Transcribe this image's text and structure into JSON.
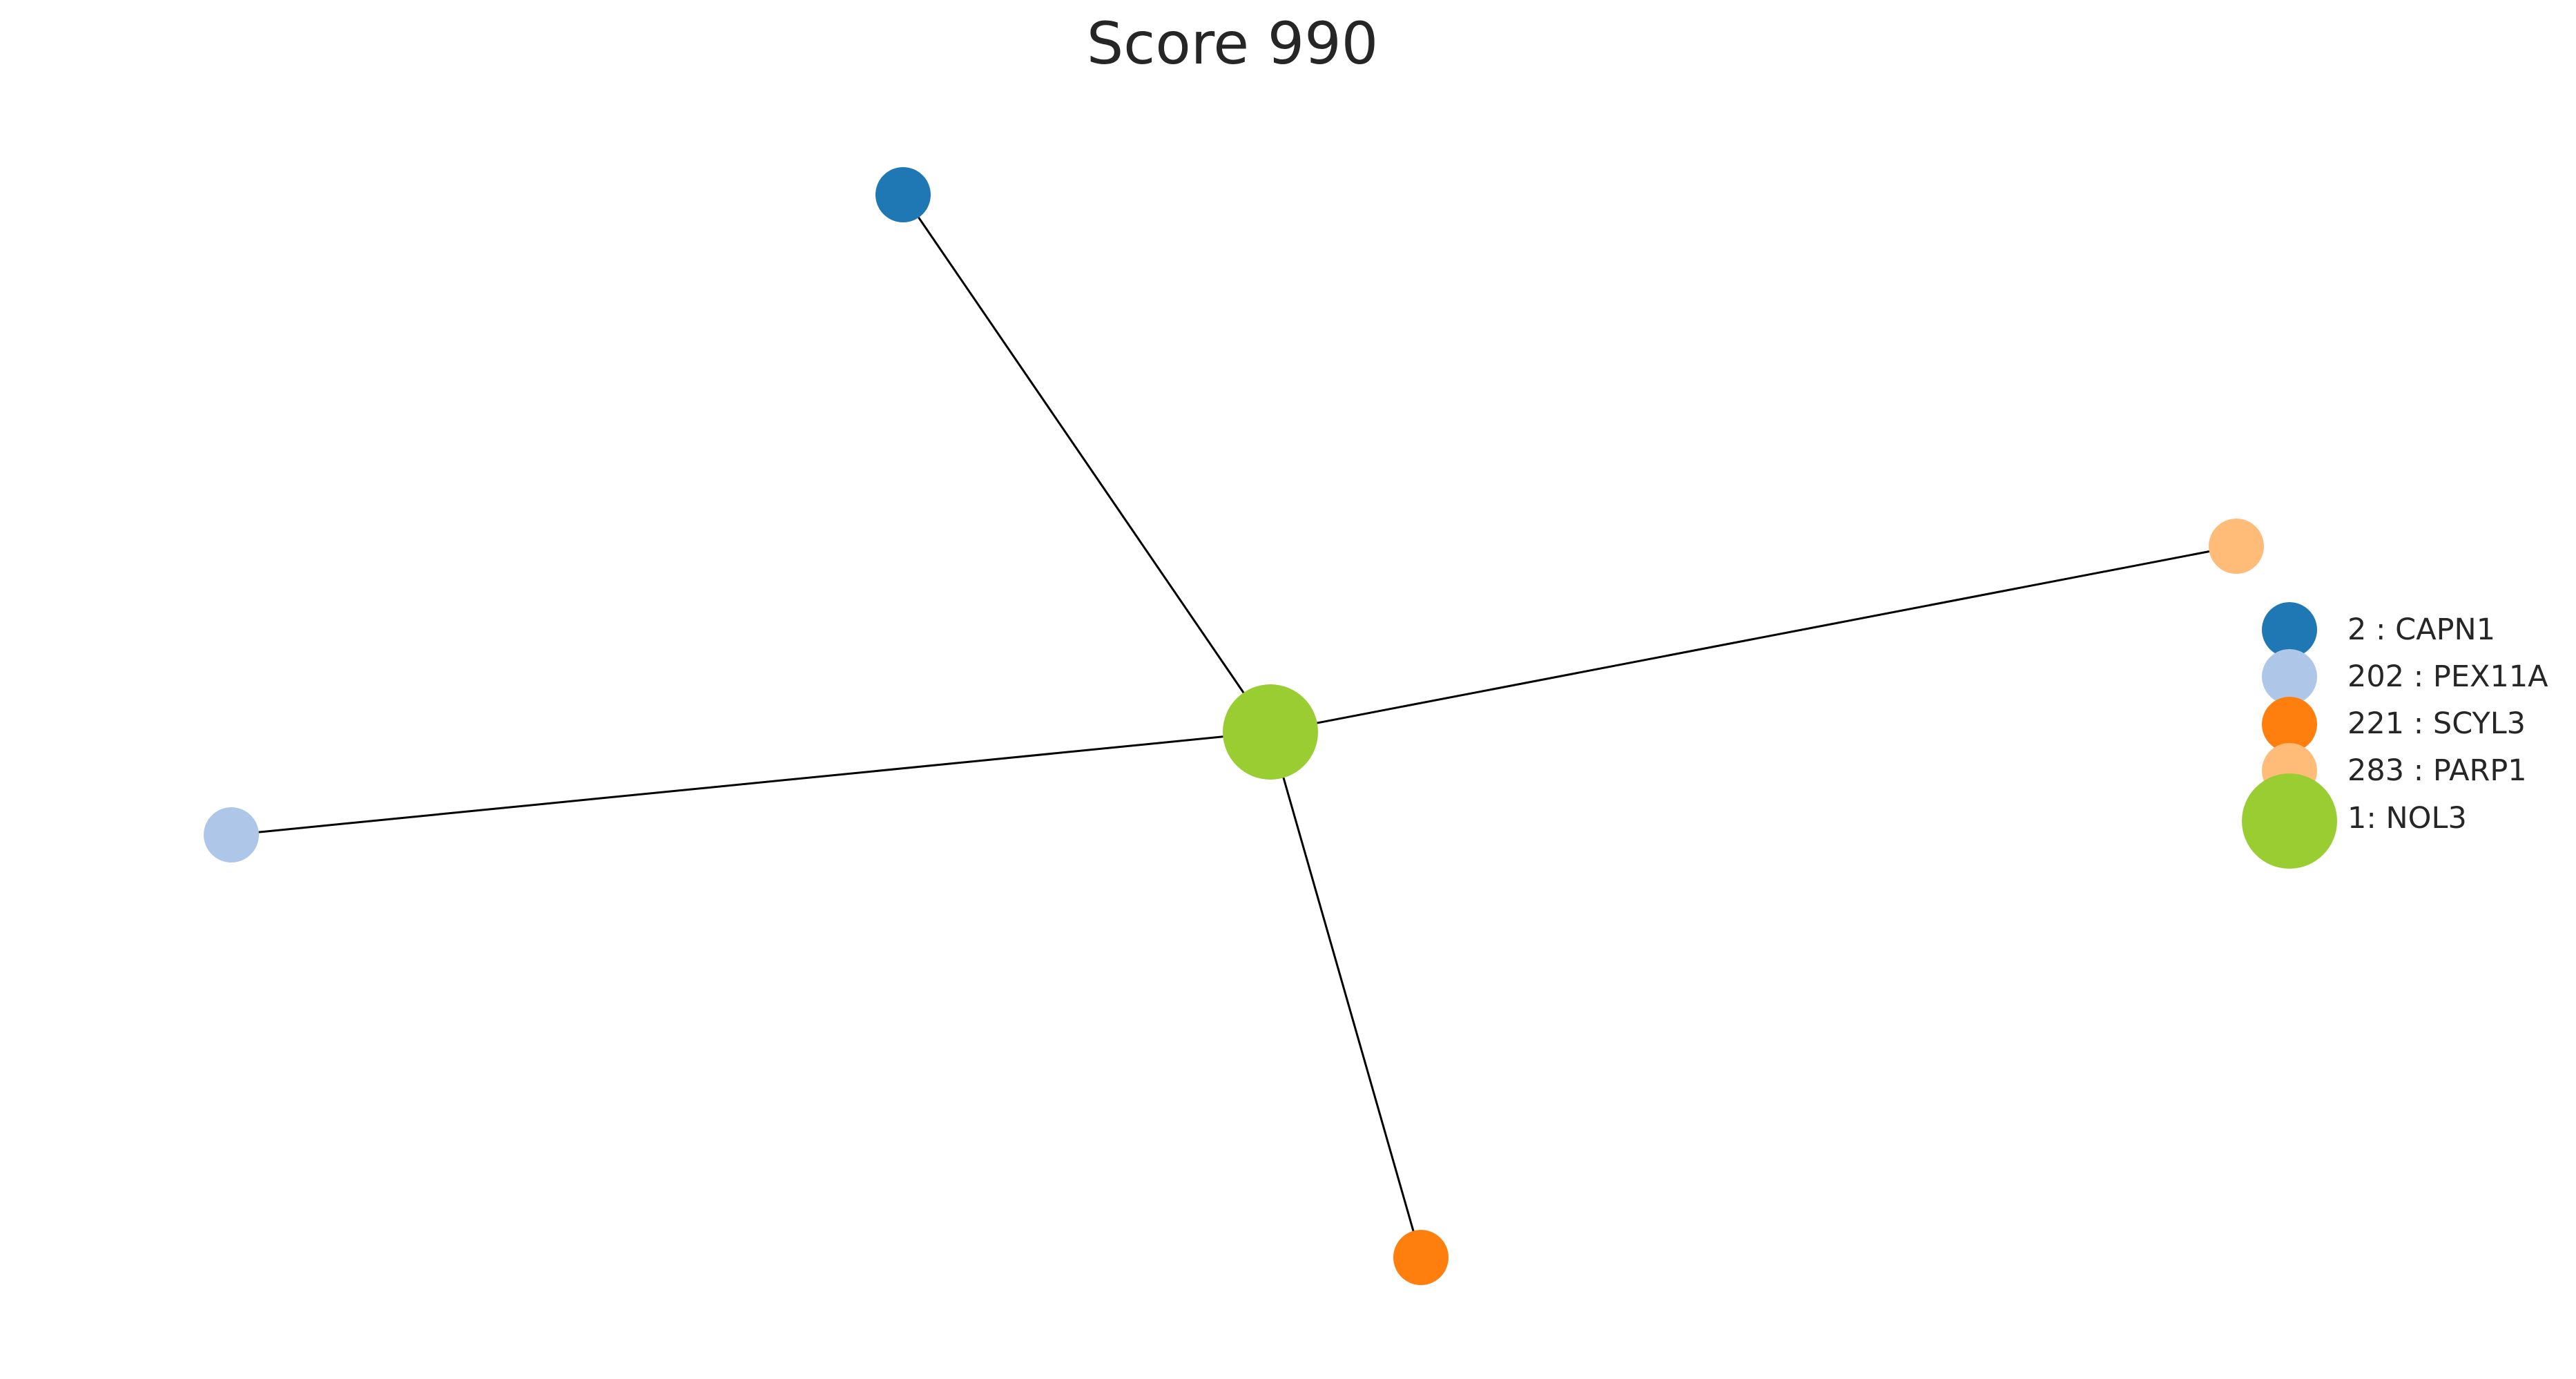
{
  "title": "Score 990",
  "nodes": [
    {
      "id": "CAPN1",
      "color": "#1f77b4"
    },
    {
      "id": "PEX11A",
      "color": "#aec7e8"
    },
    {
      "id": "SCYL3",
      "color": "#ff7f0e"
    },
    {
      "id": "PARP1",
      "color": "#ffbb78"
    },
    {
      "id": "NOL3",
      "color": "#9acd32"
    }
  ],
  "edges": [
    {
      "from": "NOL3",
      "to": "CAPN1"
    },
    {
      "from": "NOL3",
      "to": "PEX11A"
    },
    {
      "from": "NOL3",
      "to": "SCYL3"
    },
    {
      "from": "NOL3",
      "to": "PARP1"
    }
  ],
  "legend": [
    {
      "label": "2 : CAPN1",
      "color": "#1f77b4"
    },
    {
      "label": "202 : PEX11A",
      "color": "#aec7e8"
    },
    {
      "label": "221 : SCYL3",
      "color": "#ff7f0e"
    },
    {
      "label": "283 : PARP1",
      "color": "#ffbb78"
    },
    {
      "label": "1: NOL3",
      "color": "#9acd32"
    }
  ]
}
